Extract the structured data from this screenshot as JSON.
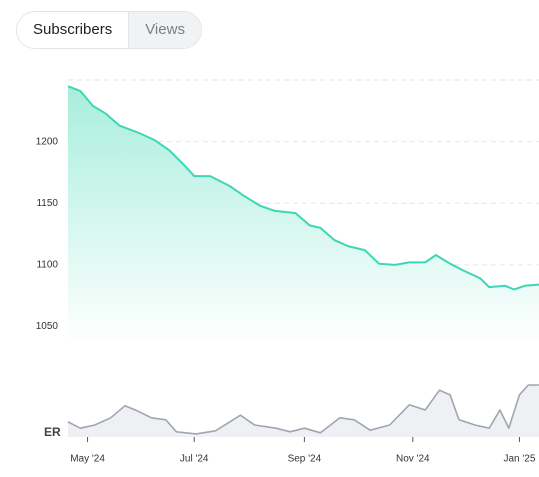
{
  "tabs": [
    "Subscribers",
    "Views"
  ],
  "chart_data": [
    {
      "type": "line",
      "color": "#3ed6b5",
      "x": [
        0,
        7,
        14,
        21,
        29,
        40,
        49,
        57,
        66,
        71,
        80,
        91,
        99,
        108,
        116,
        128,
        136,
        142,
        150,
        158,
        167,
        175,
        184,
        192,
        201,
        207,
        215,
        223,
        232,
        237,
        246,
        251,
        257,
        265
      ],
      "values": [
        1245,
        1241,
        1229,
        1223,
        1213,
        1207,
        1201,
        1193,
        1180,
        1172,
        1172,
        1164,
        1156,
        1148,
        1144,
        1142,
        1132,
        1130,
        1120,
        1115,
        1112,
        1101,
        1100,
        1102,
        1102,
        1108,
        1101,
        1095,
        1089,
        1082,
        1083,
        1080,
        1083,
        1084
      ],
      "xlim": [
        0,
        265
      ],
      "ylim": [
        1035,
        1250
      ],
      "yticks": [
        1050,
        1100,
        1150,
        1200
      ],
      "grid": true
    },
    {
      "type": "line",
      "color": "#a0a6b0",
      "y_label": "ER",
      "x": [
        0,
        7,
        15,
        24,
        32,
        38,
        47,
        55,
        61,
        72,
        83,
        97,
        105,
        117,
        125,
        133,
        142,
        153,
        161,
        170,
        181,
        192,
        201,
        209,
        215,
        220,
        229,
        237,
        243,
        248,
        254,
        259,
        265
      ],
      "values": [
        2.9,
        1.7,
        2.3,
        3.7,
        6.0,
        5.2,
        3.7,
        3.3,
        1.0,
        0.6,
        1.2,
        4.2,
        2.3,
        1.7,
        1.0,
        1.7,
        0.8,
        3.7,
        3.3,
        1.3,
        2.3,
        6.2,
        5.2,
        9.0,
        8.1,
        3.3,
        2.3,
        1.7,
        5.2,
        1.7,
        8.1,
        10,
        10
      ],
      "xlim": [
        0,
        265
      ],
      "ylim": [
        0,
        10
      ],
      "xticks": [
        {
          "value": 11,
          "label": "May '24"
        },
        {
          "value": 71,
          "label": "Jul '24"
        },
        {
          "value": 133,
          "label": "Sep '24"
        },
        {
          "value": 194,
          "label": "Nov '24"
        },
        {
          "value": 254,
          "label": "Jan '25"
        }
      ]
    }
  ]
}
